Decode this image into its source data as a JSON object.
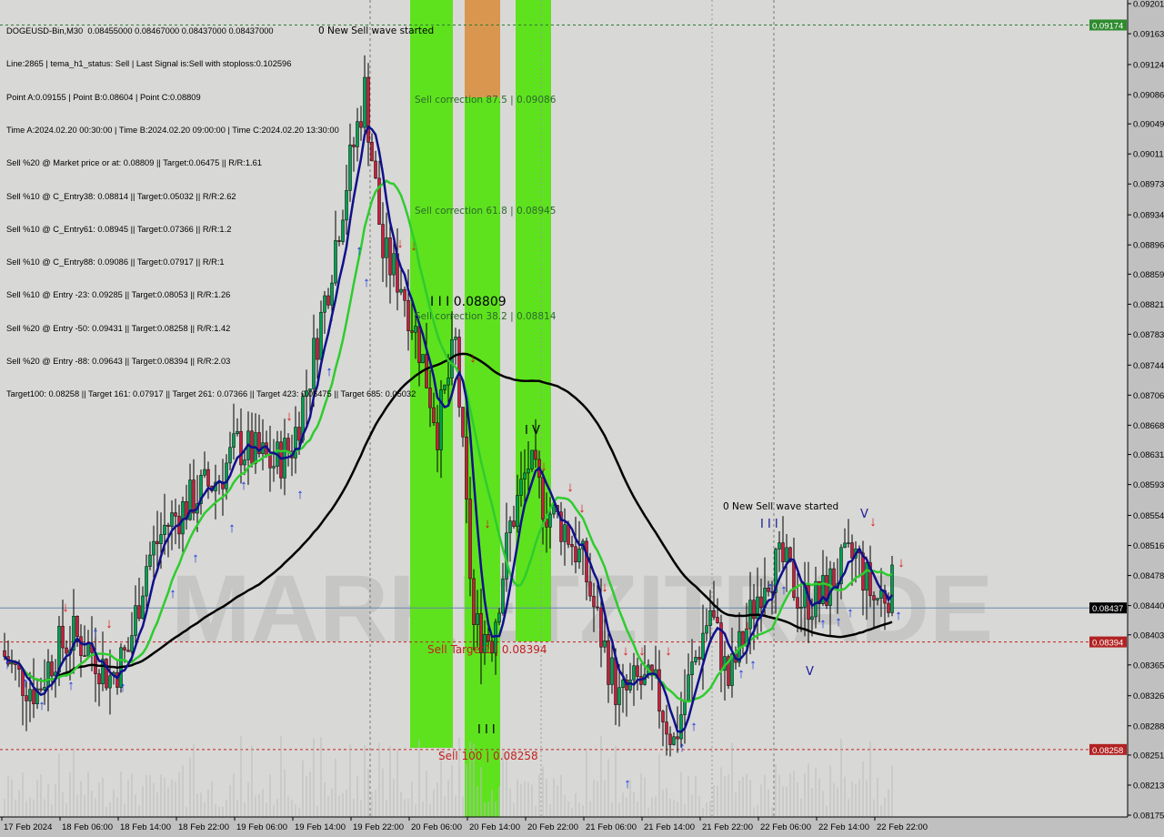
{
  "header": {
    "symbol_line": "DOGEUSD-Bin,M30  0.08455000 0.08467000 0.08437000 0.08437000",
    "lines": [
      "Line:2865 | tema_h1_status: Sell | Last Signal is:Sell with stoploss:0.102596",
      "Point A:0.09155 | Point B:0.08604 | Point C:0.08809",
      "Time A:2024.02.20 00:30:00 | Time B:2024.02.20 09:00:00 | Time C:2024.02.20 13:30:00",
      "Sell %20 @ Market price or at: 0.08809 || Target:0.06475 || R/R:1.61",
      "Sell %10 @ C_Entry38: 0.08814 || Target:0.05032 || R/R:2.62",
      "Sell %10 @ C_Entry61: 0.08945 || Target:0.07366 || R/R:1.2",
      "Sell %10 @ C_Entry88: 0.09086 || Target:0.07917 || R/R:1",
      "Sell %10 @ Entry -23: 0.09285 || Target:0.08053 || R/R:1.26",
      "Sell %20 @ Entry -50: 0.09431 || Target:0.08258 || R/R:1.42",
      "Sell %20 @ Entry -88: 0.09643 || Target:0.08394 || R/R:2.03",
      "Target100: 0.08258 || Target 161: 0.07917 || Target 261: 0.07366 || Target 423: 0.06475 || Target 685: 0.05032"
    ]
  },
  "annotations": {
    "wave1": "0 New Sell wave started",
    "wave2": "0 New Sell wave started",
    "corr875": "Sell correction 87.5 | 0.09086",
    "corr618": "Sell correction 61.8 | 0.08945",
    "corr382": "Sell correction 38.2 | 0.08814",
    "pointc": "I I I 0.08809",
    "target1": "Sell Target1 | 0.08394",
    "sell100": "Sell 100 | 0.08258",
    "iv": "I V",
    "v1": "V",
    "v2": "V",
    "iii1": "I I I",
    "iii2": "I I I"
  },
  "watermark": "MARKETZITRADE",
  "chart_data": {
    "type": "candlestick",
    "title": "DOGEUSD-Bin,M30",
    "ylim": [
      0.08175,
      0.09201
    ],
    "y_ticks": [
      "0.09201",
      "0.09163",
      "0.09124",
      "0.09086",
      "0.09049",
      "0.09011",
      "0.08973",
      "0.08934",
      "0.08896",
      "0.08859",
      "0.08821",
      "0.08783",
      "0.08744",
      "0.08706",
      "0.08668",
      "0.08631",
      "0.08593",
      "0.08554",
      "0.08516",
      "0.08478",
      "0.08440",
      "0.08403",
      "0.08365",
      "0.08326",
      "0.08288",
      "0.08251",
      "0.08213",
      "0.08175"
    ],
    "x_ticks": [
      "17 Feb 2024",
      "18 Feb 06:00",
      "18 Feb 14:00",
      "18 Feb 22:00",
      "19 Feb 06:00",
      "19 Feb 14:00",
      "19 Feb 22:00",
      "20 Feb 06:00",
      "20 Feb 14:00",
      "20 Feb 22:00",
      "21 Feb 06:00",
      "21 Feb 14:00",
      "21 Feb 22:00",
      "22 Feb 06:00",
      "22 Feb 14:00",
      "22 Feb 22:00"
    ],
    "close_path": [
      0.08383,
      0.08349,
      0.08332,
      0.08383,
      0.08401,
      0.08383,
      0.08349,
      0.08383,
      0.08493,
      0.08539,
      0.08562,
      0.08585,
      0.08602,
      0.08642,
      0.08631,
      0.08619,
      0.08642,
      0.08734,
      0.08849,
      0.08976,
      0.09091,
      0.08884,
      0.08849,
      0.08769,
      0.08665,
      0.08769,
      0.08412,
      0.08401,
      0.08539,
      0.08619,
      0.08562,
      0.08539,
      0.08493,
      0.08401,
      0.0832,
      0.08343,
      0.08332,
      0.08267,
      0.08358,
      0.08435,
      0.08343,
      0.08412,
      0.08481,
      0.08493,
      0.08447,
      0.08447,
      0.08481,
      0.08504,
      0.08447,
      0.08463
    ],
    "price_tags": [
      {
        "value": "0.09174",
        "color": "#2e8b2e"
      },
      {
        "value": "0.08437",
        "color": "#000000"
      },
      {
        "value": "0.08394",
        "color": "#b22222"
      },
      {
        "value": "0.08258",
        "color": "#b22222"
      }
    ],
    "levels": {
      "correction_875": 0.09086,
      "correction_618": 0.08945,
      "correction_382": 0.08814,
      "target1": 0.08394,
      "sell100": 0.08258,
      "bid": 0.08437,
      "top": 0.09174
    },
    "colors": {
      "bull": "#00a050",
      "bear": "#c81e3c",
      "ma_slow": "#000000",
      "ma_mid": "#2ecc2e",
      "ma_fast": "#10108c",
      "band": "#5ee21e",
      "band_top": "#d9964e"
    }
  }
}
